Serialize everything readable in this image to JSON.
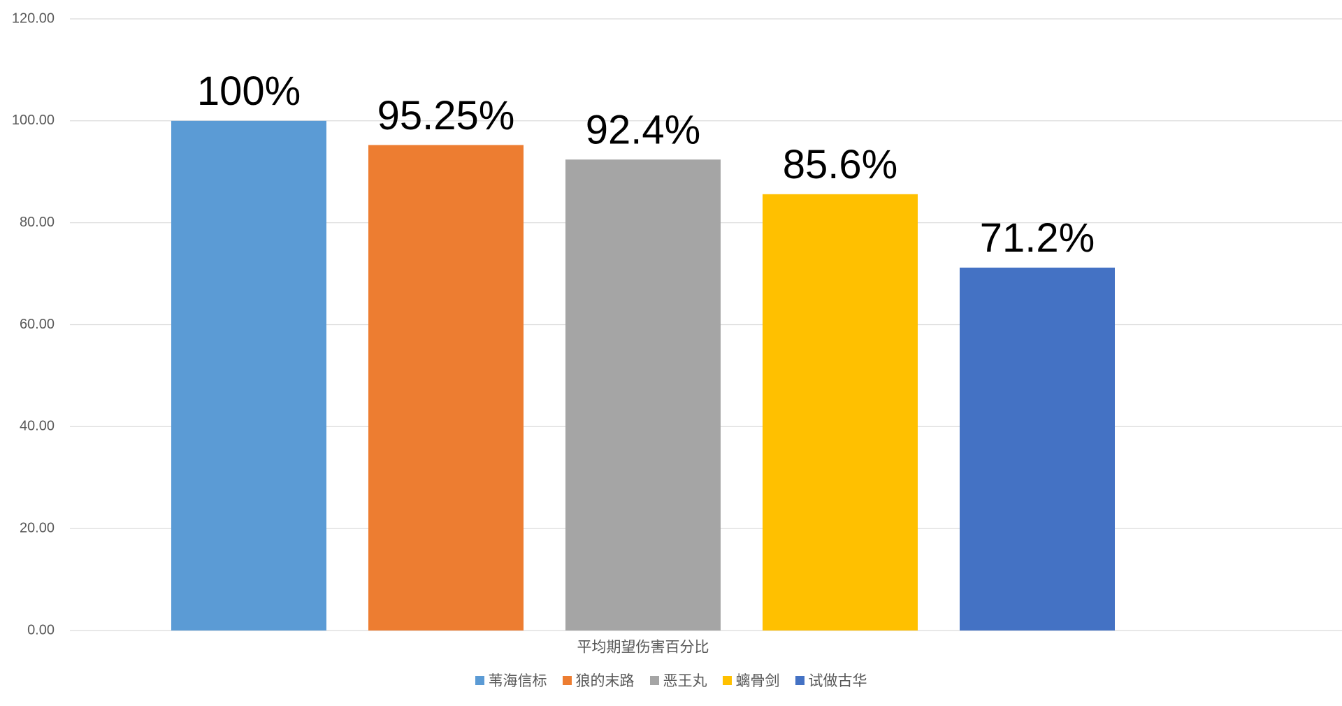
{
  "chart_data": {
    "type": "bar",
    "categories": [
      "平均期望伤害百分比"
    ],
    "series": [
      {
        "name": "苇海信标",
        "color": "#5b9bd5",
        "values": [
          100
        ],
        "value_labels": [
          "100%"
        ]
      },
      {
        "name": "狼的末路",
        "color": "#ed7d31",
        "values": [
          95.25
        ],
        "value_labels": [
          "95.25%"
        ]
      },
      {
        "name": "恶王丸",
        "color": "#a5a5a5",
        "values": [
          92.4
        ],
        "value_labels": [
          "92.4%"
        ]
      },
      {
        "name": "螭骨剑",
        "color": "#ffc000",
        "values": [
          85.6
        ],
        "value_labels": [
          "85.6%"
        ]
      },
      {
        "name": "试做古华",
        "color": "#4472c4",
        "values": [
          71.2
        ],
        "value_labels": [
          "71.2%"
        ]
      }
    ],
    "ylim": [
      0,
      120
    ],
    "yticks": [
      {
        "value": 0,
        "label": "0.00"
      },
      {
        "value": 20,
        "label": "20.00"
      },
      {
        "value": 40,
        "label": "40.00"
      },
      {
        "value": 60,
        "label": "60.00"
      },
      {
        "value": 80,
        "label": "80.00"
      },
      {
        "value": 100,
        "label": "100.00"
      },
      {
        "value": 120,
        "label": "120.00"
      }
    ],
    "grid": true,
    "legend": "bottom"
  }
}
